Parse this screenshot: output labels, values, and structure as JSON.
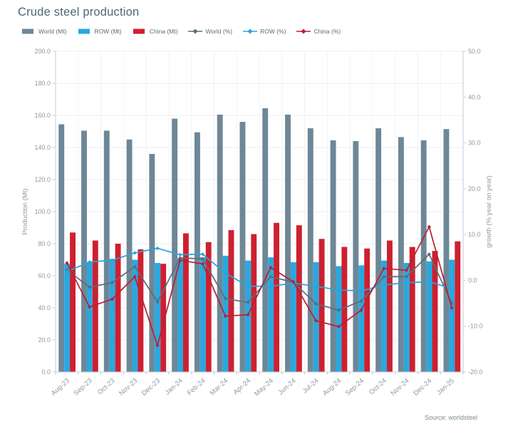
{
  "title": "Crude steel production",
  "source": "Source: worldsteel",
  "legend": [
    {
      "label": "World (Mt)",
      "type": "bar",
      "color": "#6e8797"
    },
    {
      "label": "ROW (Mt)",
      "type": "bar",
      "color": "#29a8df"
    },
    {
      "label": "China (Mt)",
      "type": "bar",
      "color": "#cd2030"
    },
    {
      "label": "World (%)",
      "type": "line",
      "color": "#5c6d79"
    },
    {
      "label": "ROW (%)",
      "type": "line",
      "color": "#2aa4d8"
    },
    {
      "label": "China (%)",
      "type": "line",
      "color": "#b92031"
    }
  ],
  "chart_data": {
    "type": "bar+line combo",
    "title": "Crude steel production",
    "categories": [
      "Aug-23",
      "Sep-23",
      "Oct-23",
      "Nov-23",
      "Dec-23",
      "Jan-24",
      "Feb-24",
      "Mar-24",
      "Apr-24",
      "May-24",
      "Jun-24",
      "Jul-24",
      "Aug-24",
      "Sep-24",
      "Oct-24",
      "Nov-24",
      "Dec-24",
      "Jan-25"
    ],
    "series": [
      {
        "name": "World (Mt)",
        "type": "bar",
        "axis": "left",
        "color": "#6e8797",
        "values": [
          154.5,
          150.5,
          150.5,
          145.0,
          136.0,
          158.0,
          149.5,
          160.5,
          156.0,
          164.5,
          160.5,
          152.0,
          144.5,
          144.0,
          152.0,
          146.5,
          144.5,
          151.5
        ]
      },
      {
        "name": "ROW (Mt)",
        "type": "bar",
        "axis": "left",
        "color": "#29a8df",
        "values": [
          67.5,
          68.5,
          70.5,
          70.0,
          68.0,
          71.0,
          71.5,
          72.5,
          69.5,
          71.5,
          68.5,
          68.5,
          66.0,
          66.5,
          69.5,
          68.0,
          69.0,
          70.0
        ]
      },
      {
        "name": "China (Mt)",
        "type": "bar",
        "axis": "left",
        "color": "#cd2030",
        "values": [
          87.0,
          82.0,
          80.0,
          76.5,
          67.5,
          86.5,
          81.0,
          88.5,
          86.0,
          93.0,
          91.5,
          83.0,
          78.0,
          77.0,
          82.0,
          78.0,
          75.5,
          81.5
        ]
      },
      {
        "name": "World (%)",
        "type": "line",
        "axis": "right",
        "color": "#5c6d79",
        "values": [
          2.3,
          -1.5,
          -0.5,
          3.0,
          -4.7,
          4.9,
          4.7,
          -4.0,
          -4.8,
          0.8,
          -0.4,
          -5.1,
          -6.5,
          -4.5,
          0.8,
          0.8,
          5.7,
          -5.0
        ]
      },
      {
        "name": "ROW (%)",
        "type": "line",
        "axis": "right",
        "color": "#2aa4d8",
        "values": [
          1.9,
          4.0,
          4.4,
          6.0,
          7.0,
          5.6,
          5.7,
          1.6,
          -1.3,
          -1.3,
          -0.6,
          -1.3,
          -2.1,
          -2.3,
          -1.0,
          -0.5,
          -0.3,
          -1.8
        ]
      },
      {
        "name": "China (%)",
        "type": "line",
        "axis": "right",
        "color": "#b92031",
        "values": [
          3.8,
          -5.8,
          -4.1,
          0.8,
          -14.2,
          4.4,
          3.6,
          -7.8,
          -7.5,
          2.8,
          -0.3,
          -8.8,
          -10.1,
          -6.5,
          2.6,
          2.2,
          11.7,
          -6.0
        ]
      }
    ],
    "left_axis": {
      "label": "Production (Mt)",
      "min": 0,
      "max": 200,
      "step": 20,
      "tick_format": "one-decimal"
    },
    "right_axis": {
      "label": "growth (% year on year)",
      "min": -20,
      "max": 50,
      "step": 10,
      "tick_format": "one-decimal"
    },
    "grid": true,
    "legend_position": "top"
  }
}
